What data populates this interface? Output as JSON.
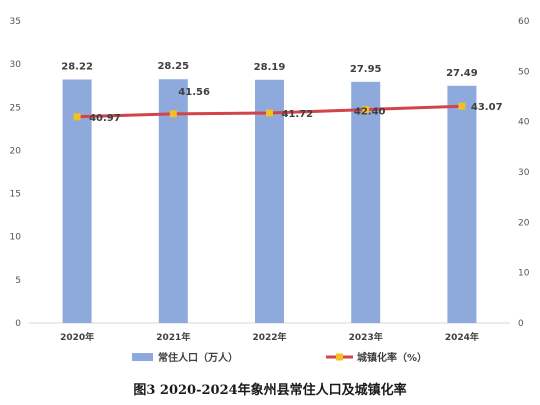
{
  "caption": "图3   2020-2024年象州县常住人口及城镇化率",
  "chart_data": {
    "type": "bar+line",
    "categories": [
      "2020年",
      "2021年",
      "2022年",
      "2023年",
      "2024年"
    ],
    "series": [
      {
        "name": "常住人口（万人）",
        "type": "bar",
        "axis": "left",
        "color": "#8EA9DB",
        "values": [
          28.22,
          28.25,
          28.19,
          27.95,
          27.49
        ],
        "labels": [
          "28.22",
          "28.25",
          "28.19",
          "27.95",
          "27.49"
        ]
      },
      {
        "name": "城镇化率（%）",
        "type": "line",
        "axis": "right",
        "color": "#D2434A",
        "marker_color": "#F2C020",
        "values": [
          40.97,
          41.56,
          41.72,
          42.4,
          43.07
        ],
        "labels": [
          "40.97",
          "41.56",
          "41.72",
          "42.40",
          "43.07"
        ]
      }
    ],
    "y_left": {
      "min": 0,
      "max": 35,
      "ticks": [
        0,
        5,
        10,
        15,
        20,
        25,
        30,
        35
      ]
    },
    "y_right": {
      "min": 0,
      "max": 60,
      "ticks": [
        0,
        10,
        20,
        30,
        40,
        50,
        60
      ]
    },
    "legend_position": "bottom",
    "grid": false
  }
}
